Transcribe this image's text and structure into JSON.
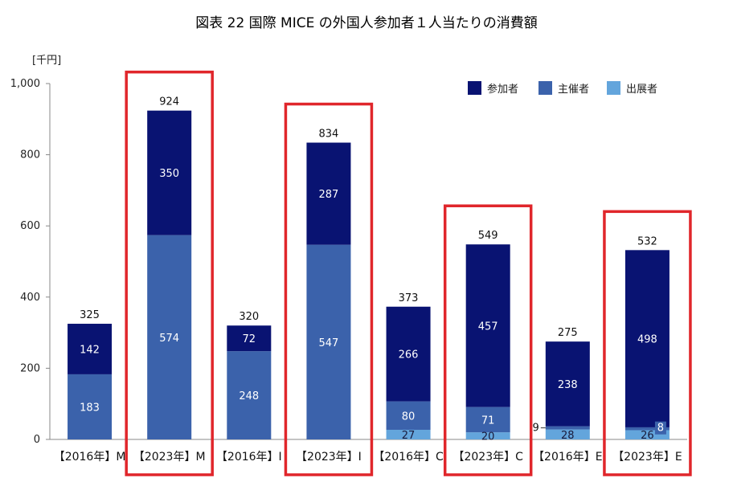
{
  "chart_data": {
    "type": "bar",
    "stacked": true,
    "title": "図表 22 国際 MICE の外国人参加者１人当たりの消費額",
    "ylabel": "[千円]",
    "xlabel": "",
    "ylim": [
      0,
      1000
    ],
    "yticks": [
      0,
      200,
      400,
      600,
      800,
      1000
    ],
    "ytick_labels": [
      "0",
      "200",
      "400",
      "600",
      "800",
      "1,000"
    ],
    "categories": [
      "【2016年】M",
      "【2023年】M",
      "【2016年】I",
      "【2023年】I",
      "【2016年】C",
      "【2023年】C",
      "【2016年】E",
      "【2023年】E"
    ],
    "series": [
      {
        "name": "出展者",
        "color": "#63a5dc",
        "values": [
          0,
          0,
          0,
          0,
          27,
          20,
          28,
          26
        ],
        "labels": [
          "",
          "",
          "",
          "",
          "27",
          "20",
          "28",
          "26"
        ]
      },
      {
        "name": "主催者",
        "color": "#3b62ab",
        "values": [
          183,
          574,
          248,
          547,
          80,
          71,
          9,
          8
        ],
        "labels": [
          "183",
          "574",
          "248",
          "547",
          "80",
          "71",
          "9",
          "8"
        ]
      },
      {
        "name": "参加者",
        "color": "#091372",
        "values": [
          142,
          350,
          72,
          287,
          266,
          457,
          238,
          498
        ],
        "labels": [
          "142",
          "350",
          "72",
          "287",
          "266",
          "457",
          "238",
          "498"
        ]
      }
    ],
    "totals": [
      "325",
      "924",
      "320",
      "834",
      "373",
      "549",
      "275",
      "532"
    ],
    "highlighted": [
      false,
      true,
      false,
      true,
      false,
      true,
      false,
      true
    ],
    "highlight_color": "#e0262b",
    "legend_order": [
      "参加者",
      "主催者",
      "出展者"
    ],
    "legend_position": "top-right"
  }
}
